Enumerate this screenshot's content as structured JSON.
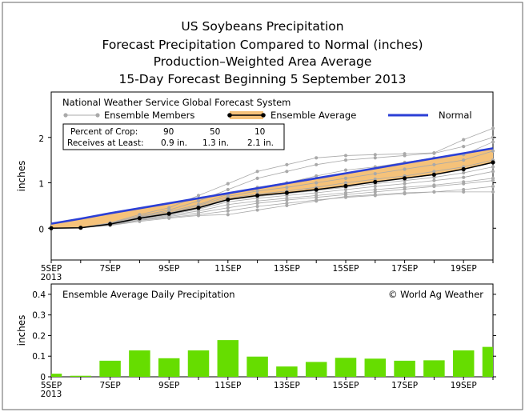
{
  "titles": {
    "line1": "US Soybeans Precipitation",
    "line2": "Forecast Precipitation Compared to Normal (inches)",
    "line3": "Production–Weighted Area Average",
    "line4": "15-Day Forecast Beginning 5 September 2013"
  },
  "colors": {
    "normal": "#2b3fd6",
    "band": "#f5c27a",
    "average": "#000000",
    "members": "#a9a9a9",
    "bars": "#66dd00"
  },
  "chart_data": [
    {
      "type": "line",
      "panel": "top",
      "source_label": "National Weather Service Global Forecast System",
      "legend": {
        "members": "Ensemble Members",
        "average": "Ensemble Average",
        "normal": "Normal",
        "placement": "top"
      },
      "crop_table": {
        "row1_label": "Percent of Crop:",
        "row2_label": "Receives at Least:",
        "percents": [
          "90",
          "50",
          "10"
        ],
        "amounts": [
          "0.9 in.",
          "1.3 in.",
          "2.1 in."
        ]
      },
      "ylabel": "inches",
      "ylim": [
        -0.7,
        3.0
      ],
      "yticks": [
        "0",
        "1",
        "2"
      ],
      "xlabels": [
        "5SEP",
        "7SEP",
        "9SEP",
        "11SEP",
        "13SEP",
        "15SEP",
        "17SEP",
        "19SEP"
      ],
      "xlabel_year": "2013",
      "x_days": [
        5,
        6,
        7,
        8,
        9,
        10,
        11,
        12,
        13,
        14,
        15,
        16,
        17,
        18,
        19,
        20
      ],
      "normal": [
        0.1,
        0.21,
        0.33,
        0.44,
        0.55,
        0.66,
        0.77,
        0.88,
        0.99,
        1.1,
        1.21,
        1.32,
        1.43,
        1.54,
        1.65,
        1.76
      ],
      "ensemble_average": [
        0.0,
        0.01,
        0.09,
        0.22,
        0.32,
        0.45,
        0.63,
        0.72,
        0.78,
        0.85,
        0.93,
        1.02,
        1.1,
        1.18,
        1.3,
        1.45
      ],
      "members": [
        [
          0.0,
          0.01,
          0.12,
          0.3,
          0.45,
          0.72,
          0.98,
          1.25,
          1.4,
          1.55,
          1.6,
          1.62,
          1.64,
          1.66,
          1.95,
          2.2
        ],
        [
          0.0,
          0.01,
          0.11,
          0.27,
          0.4,
          0.6,
          0.85,
          1.1,
          1.25,
          1.4,
          1.5,
          1.55,
          1.6,
          1.65,
          1.8,
          2.0
        ],
        [
          0.0,
          0.01,
          0.1,
          0.25,
          0.37,
          0.52,
          0.75,
          0.9,
          1.0,
          1.15,
          1.28,
          1.35,
          1.45,
          1.55,
          1.62,
          1.9
        ],
        [
          0.0,
          0.01,
          0.1,
          0.24,
          0.34,
          0.5,
          0.7,
          0.82,
          0.9,
          1.0,
          1.1,
          1.2,
          1.3,
          1.4,
          1.5,
          1.7
        ],
        [
          0.0,
          0.01,
          0.09,
          0.23,
          0.33,
          0.47,
          0.66,
          0.75,
          0.82,
          0.9,
          1.0,
          1.08,
          1.15,
          1.25,
          1.35,
          1.5
        ],
        [
          0.0,
          0.01,
          0.09,
          0.22,
          0.31,
          0.44,
          0.62,
          0.7,
          0.76,
          0.83,
          0.9,
          0.98,
          1.05,
          1.12,
          1.22,
          1.35
        ],
        [
          0.0,
          0.01,
          0.08,
          0.21,
          0.3,
          0.42,
          0.58,
          0.66,
          0.72,
          0.78,
          0.85,
          0.92,
          0.98,
          1.05,
          1.12,
          1.25
        ],
        [
          0.0,
          0.01,
          0.08,
          0.2,
          0.28,
          0.38,
          0.52,
          0.6,
          0.66,
          0.72,
          0.78,
          0.85,
          0.9,
          0.95,
          1.02,
          1.1
        ],
        [
          0.0,
          0.01,
          0.07,
          0.18,
          0.26,
          0.34,
          0.45,
          0.55,
          0.62,
          0.68,
          0.74,
          0.8,
          0.86,
          0.92,
          0.98,
          1.05
        ],
        [
          0.0,
          0.01,
          0.07,
          0.17,
          0.24,
          0.3,
          0.38,
          0.48,
          0.55,
          0.62,
          0.68,
          0.72,
          0.76,
          0.8,
          0.85,
          0.92
        ],
        [
          0.0,
          0.01,
          0.06,
          0.15,
          0.22,
          0.28,
          0.3,
          0.4,
          0.5,
          0.6,
          0.7,
          0.74,
          0.78,
          0.8,
          0.8,
          0.8
        ]
      ]
    },
    {
      "type": "bar",
      "panel": "bottom",
      "title": "Ensemble Average Daily Precipitation",
      "credit": "© World Ag Weather",
      "ylabel": "inches",
      "ylim": [
        0,
        0.45
      ],
      "yticks": [
        "0",
        "0.1",
        "0.2",
        "0.3",
        "0.4"
      ],
      "xlabels": [
        "5SEP",
        "7SEP",
        "9SEP",
        "11SEP",
        "13SEP",
        "15SEP",
        "17SEP",
        "19SEP"
      ],
      "xlabel_year": "2013",
      "x_days": [
        5,
        6,
        7,
        8,
        9,
        10,
        11,
        12,
        13,
        14,
        15,
        16,
        17,
        18,
        19,
        20
      ],
      "values": [
        0.015,
        0.005,
        0.078,
        0.128,
        0.09,
        0.128,
        0.178,
        0.098,
        0.05,
        0.072,
        0.092,
        0.088,
        0.078,
        0.08,
        0.128,
        0.145
      ]
    }
  ]
}
